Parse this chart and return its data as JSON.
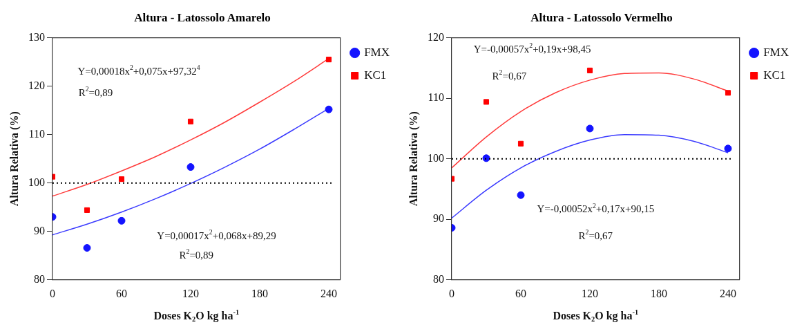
{
  "chart_data": [
    {
      "type": "scatter",
      "title": "Altura - Latossolo Amarelo",
      "xlabel": "Doses K$_{2}$O kg ha$^{-1}$",
      "ylabel": "Altura Relativa (%)",
      "x": [
        0,
        30,
        60,
        120,
        240
      ],
      "xlim": [
        0,
        250
      ],
      "xticks": [
        0,
        60,
        120,
        180,
        240
      ],
      "ylim": [
        80,
        130
      ],
      "yticks": [
        80,
        90,
        100,
        110,
        120,
        130
      ],
      "legend": "right",
      "series": [
        {
          "name": "FMX",
          "color": "#1414ff",
          "marker": "circle",
          "values": [
            93,
            86.6,
            92.2,
            103.3,
            115.2
          ]
        },
        {
          "name": "KC1",
          "color": "#ff0000",
          "marker": "square",
          "values": [
            101.3,
            94.4,
            100.8,
            112.7,
            125.5
          ]
        },
        {
          "type": "line",
          "color": "#ff3b3b",
          "marker": "none",
          "x": [
            0,
            30,
            60,
            90,
            120,
            150,
            180,
            210,
            240
          ],
          "values": [
            97.3,
            99.7,
            102.5,
            105.5,
            108.9,
            112.6,
            116.7,
            121.0,
            125.7
          ]
        },
        {
          "type": "line",
          "color": "#3b3bff",
          "marker": "none",
          "x": [
            0,
            30,
            60,
            90,
            120,
            150,
            180,
            210,
            240
          ],
          "values": [
            89.3,
            91.5,
            94.0,
            96.8,
            99.9,
            103.3,
            107.0,
            111.1,
            115.4
          ]
        }
      ],
      "ref_lines": [
        {
          "axis": "y",
          "value": 100,
          "color": "#000000",
          "line_style": "dotted"
        }
      ],
      "annotations": [
        "Y=0,00018x$^{2}$+0,075x+97,32$^{4}$",
        "R$^{2}$=0,89",
        "Y=0,00017x$^{2}$+0,068x+89,29",
        "R$^{2}$=0,89"
      ]
    },
    {
      "type": "scatter",
      "title": "Altura - Latossolo Vermelho",
      "xlabel": "Doses K$_{2}$O kg ha$^{-1}$",
      "ylabel": "Altura Relativa (%)",
      "x": [
        0,
        30,
        60,
        120,
        240
      ],
      "xlim": [
        0,
        250
      ],
      "xticks": [
        0,
        60,
        120,
        180,
        240
      ],
      "ylim": [
        80,
        120
      ],
      "yticks": [
        80,
        90,
        100,
        110,
        120
      ],
      "legend": "right",
      "series": [
        {
          "name": "FMX",
          "color": "#1414ff",
          "marker": "circle",
          "values": [
            88.6,
            100.1,
            94,
            105,
            101.7
          ]
        },
        {
          "name": "KC1",
          "color": "#ff0000",
          "marker": "square",
          "values": [
            96.7,
            109.4,
            102.5,
            114.6,
            110.9
          ]
        },
        {
          "type": "line",
          "color": "#ff3b3b",
          "marker": "none",
          "x": [
            0,
            30,
            60,
            90,
            120,
            150,
            180,
            210,
            240
          ],
          "values": [
            98.5,
            103.6,
            107.8,
            110.9,
            113.0,
            114.1,
            114.2,
            113.2,
            111.2
          ]
        },
        {
          "type": "line",
          "color": "#3b3bff",
          "marker": "none",
          "x": [
            0,
            30,
            60,
            90,
            120,
            150,
            180,
            210,
            240
          ],
          "values": [
            90.2,
            94.8,
            98.5,
            101.2,
            103.1,
            104.0,
            103.9,
            102.9,
            101.0
          ]
        }
      ],
      "ref_lines": [
        {
          "axis": "y",
          "value": 100,
          "color": "#000000",
          "line_style": "dotted"
        }
      ],
      "annotations": [
        "Y=-0,00057x$^{2}$+0,19x+98,45",
        "R$^{2}$=0,67",
        "Y=-0,00052x$^{2}$+0,17x+90,15",
        "R$^{2}$=0,67"
      ]
    }
  ]
}
